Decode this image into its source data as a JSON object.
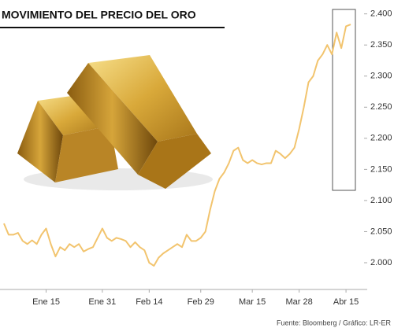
{
  "chart_data": {
    "type": "line",
    "title": "MOVIMIENTO DEL PRECIO DEL ORO",
    "source": "Fuente: Bloomberg / Gráfico: LR-ER",
    "color": "#f2c46e",
    "values": [
      2063,
      2045,
      2045,
      2048,
      2035,
      2030,
      2036,
      2030,
      2045,
      2055,
      2030,
      2010,
      2025,
      2020,
      2030,
      2025,
      2030,
      2018,
      2022,
      2025,
      2040,
      2055,
      2040,
      2035,
      2040,
      2038,
      2035,
      2025,
      2033,
      2025,
      2020,
      2000,
      1995,
      2008,
      2015,
      2020,
      2025,
      2030,
      2025,
      2045,
      2035,
      2035,
      2040,
      2050,
      2085,
      2115,
      2135,
      2145,
      2160,
      2180,
      2185,
      2165,
      2160,
      2165,
      2160,
      2158,
      2160,
      2160,
      2180,
      2175,
      2168,
      2175,
      2185,
      2215,
      2250,
      2290,
      2300,
      2325,
      2335,
      2350,
      2335,
      2370,
      2345,
      2380,
      2383
    ],
    "xlim": [
      0,
      74.5
    ],
    "xticks": [
      {
        "value": 9,
        "label": "Ene 15"
      },
      {
        "value": 21,
        "label": "Ene 31"
      },
      {
        "value": 31,
        "label": "Feb 14"
      },
      {
        "value": 42,
        "label": "Feb 29"
      },
      {
        "value": 53,
        "label": "Mar 15"
      },
      {
        "value": 63,
        "label": "Mar 28"
      },
      {
        "value": 73,
        "label": "Abr 15"
      }
    ],
    "ylim": [
      1957,
      2416
    ],
    "yticks": [
      {
        "value": 2000,
        "label": "2.000"
      },
      {
        "value": 2050,
        "label": "2.050"
      },
      {
        "value": 2100,
        "label": "2.100"
      },
      {
        "value": 2150,
        "label": "2.150"
      },
      {
        "value": 2200,
        "label": "2.200"
      },
      {
        "value": 2250,
        "label": "2.250"
      },
      {
        "value": 2300,
        "label": "2.300"
      },
      {
        "value": 2350,
        "label": "2.350"
      },
      {
        "value": 2400,
        "label": "2.400"
      }
    ]
  }
}
